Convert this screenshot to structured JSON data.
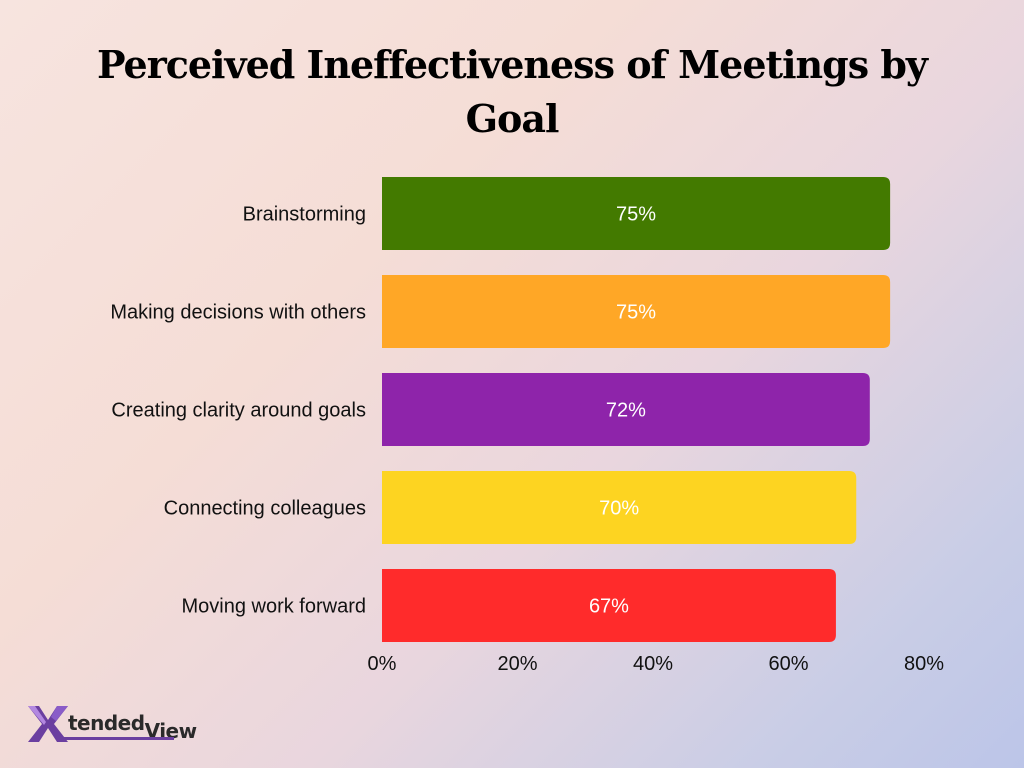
{
  "title": "Perceived Ineffectiveness of Meetings by Goal",
  "logo": {
    "prefix": "tended",
    "suffix": "View"
  },
  "colors": {
    "text": "#111111",
    "bar_label": "#ffffff"
  },
  "chart_data": {
    "type": "bar",
    "orientation": "horizontal",
    "title": "Perceived Ineffectiveness of Meetings by Goal",
    "categories": [
      "Brainstorming",
      "Making decisions with others",
      "Creating clarity around goals",
      "Connecting colleagues",
      "Moving work forward"
    ],
    "values": [
      75,
      75,
      72,
      70,
      67
    ],
    "value_labels": [
      "75%",
      "75%",
      "72%",
      "70%",
      "67%"
    ],
    "bar_colors": [
      "#437a00",
      "#ffa726",
      "#8e24aa",
      "#fdd421",
      "#ff2b2b"
    ],
    "xlim": [
      0,
      80
    ],
    "xticks": [
      0,
      20,
      40,
      60,
      80
    ],
    "xtick_labels": [
      "0%",
      "20%",
      "40%",
      "60%",
      "80%"
    ],
    "grid": false,
    "legend": "none"
  }
}
